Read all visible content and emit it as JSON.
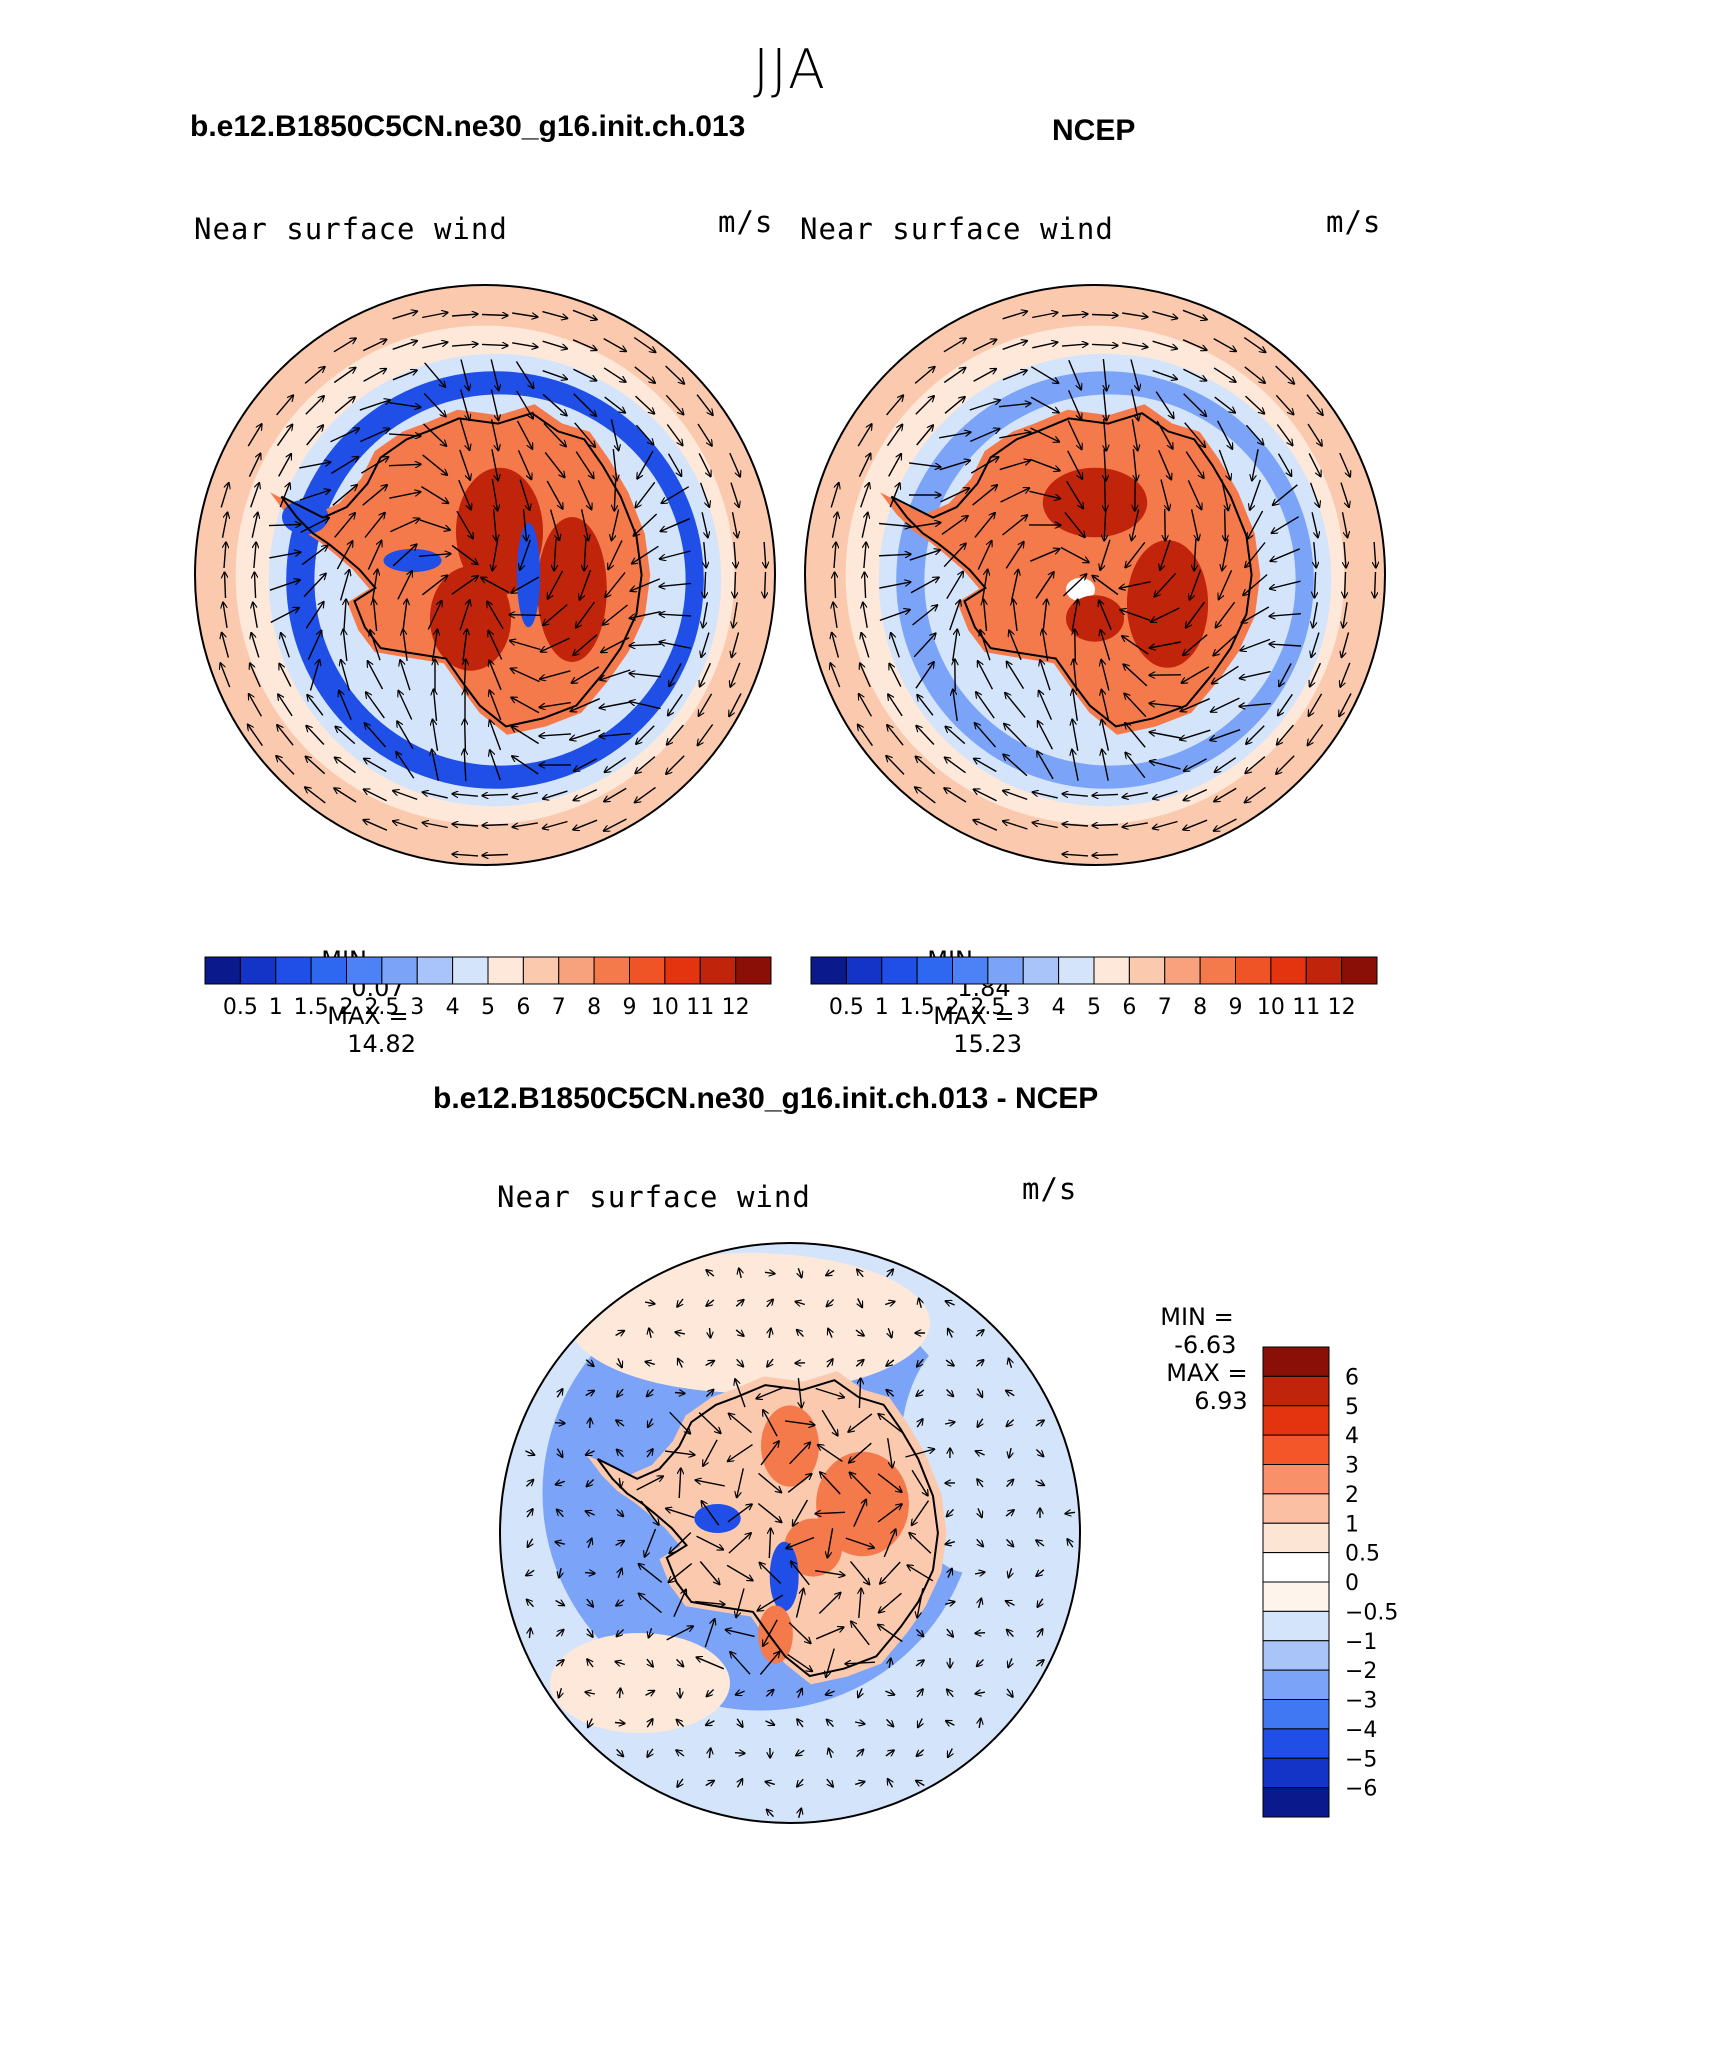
{
  "figure": {
    "title": "JJA",
    "panel1": {
      "case_title": "b.e12.B1850C5CN.ne30_g16.init.ch.013",
      "variable": "Near surface wind",
      "units": "m/s",
      "min_label": "MIN =",
      "min_value": "0.07",
      "max_label": "MAX =",
      "max_value": "14.82"
    },
    "panel2": {
      "case_title": "NCEP",
      "variable": "Near surface wind",
      "units": "m/s",
      "min_label": "MIN =",
      "min_value": "1.84",
      "max_label": "MAX =",
      "max_value": "15.23"
    },
    "panel3": {
      "case_title": "b.e12.B1850C5CN.ne30_g16.init.ch.013 - NCEP",
      "variable": "Near surface wind",
      "units": "m/s",
      "min_label": "MIN =",
      "min_value": "-6.63",
      "max_label": "MAX =",
      "max_value": "6.93"
    }
  },
  "colorbars": {
    "absolute": {
      "labels": [
        "0.5",
        "1",
        "1.5",
        "2",
        "2.5",
        "3",
        "4",
        "5",
        "6",
        "7",
        "8",
        "9",
        "10",
        "11",
        "12"
      ],
      "colors": [
        "#0a1a8c",
        "#1434c8",
        "#1f4fe6",
        "#2e68f0",
        "#4c82f5",
        "#7ba3f7",
        "#a9c4f8",
        "#d4e4fb",
        "#fde8da",
        "#fbc9ae",
        "#f8a27d",
        "#f47a4c",
        "#ee5426",
        "#e3330f",
        "#c0240b",
        "#8a0f06"
      ]
    },
    "difference": {
      "labels": [
        "6",
        "5",
        "4",
        "3",
        "2",
        "1",
        "0.5",
        "0",
        "−0.5",
        "−1",
        "−2",
        "−3",
        "−4",
        "−5",
        "−6"
      ],
      "colors": [
        "#8a0f06",
        "#c0240b",
        "#e3330f",
        "#f4562a",
        "#f8906a",
        "#fbbfa3",
        "#fde5d6",
        "#fff4ec",
        "#d4e4fb",
        "#a9c4f8",
        "#7ba3f7",
        "#3f78f2",
        "#1f4fe6",
        "#1434c8",
        "#0a1a8c"
      ]
    }
  },
  "map_colors": {
    "bg_light_red": "#fbc9ae",
    "bg_red": "#f47a4c",
    "deep_red": "#c0240b",
    "light_blue": "#d4e4fb",
    "mid_blue": "#7ba3f7",
    "deep_blue": "#1f4fe6",
    "very_light_red": "#fde8da"
  }
}
